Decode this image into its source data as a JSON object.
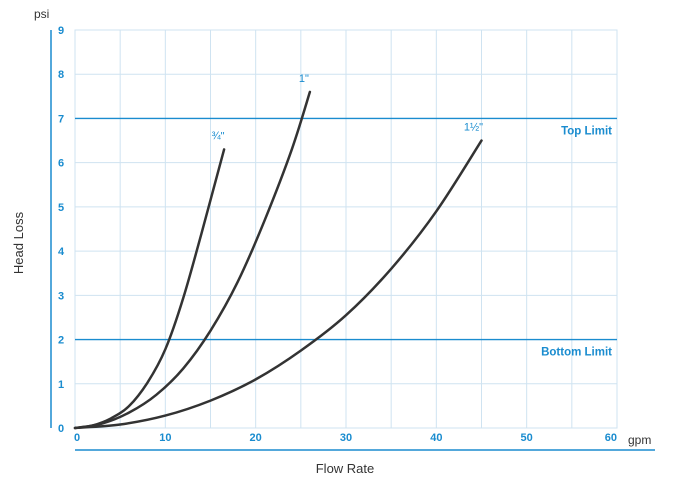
{
  "chart_data": {
    "type": "line",
    "xlabel": "Flow Rate",
    "ylabel": "Head Loss",
    "x_unit": "gpm",
    "y_unit": "psi",
    "xlim": [
      0,
      60
    ],
    "ylim": [
      0,
      9
    ],
    "x_ticks": [
      "0",
      "10",
      "20",
      "30",
      "40",
      "50",
      "60"
    ],
    "y_ticks": [
      "0",
      "1",
      "2",
      "3",
      "4",
      "5",
      "6",
      "7",
      "8",
      "9"
    ],
    "grid": true,
    "series": [
      {
        "name": "¾\"",
        "x": [
          0,
          2,
          4,
          6,
          8,
          10,
          12,
          14,
          16.5
        ],
        "y": [
          0,
          0.06,
          0.22,
          0.5,
          1.02,
          1.78,
          2.95,
          4.4,
          6.3
        ]
      },
      {
        "name": "1\"",
        "x": [
          0,
          3,
          6,
          9,
          12,
          15,
          18,
          21,
          24,
          26
        ],
        "y": [
          0,
          0.1,
          0.35,
          0.75,
          1.35,
          2.2,
          3.3,
          4.7,
          6.3,
          7.6
        ]
      },
      {
        "name": "1½\"",
        "x": [
          0,
          5,
          10,
          15,
          20,
          25,
          30,
          35,
          40,
          45
        ],
        "y": [
          0,
          0.08,
          0.28,
          0.62,
          1.1,
          1.75,
          2.55,
          3.6,
          4.9,
          6.5
        ]
      }
    ],
    "reference_lines": [
      {
        "label": "Top Limit",
        "y": 7
      },
      {
        "label": "Bottom Limit",
        "y": 2
      }
    ],
    "colors": {
      "accent": "#1a8ccf",
      "grid": "#cfe3f1",
      "curve": "#333333"
    }
  }
}
